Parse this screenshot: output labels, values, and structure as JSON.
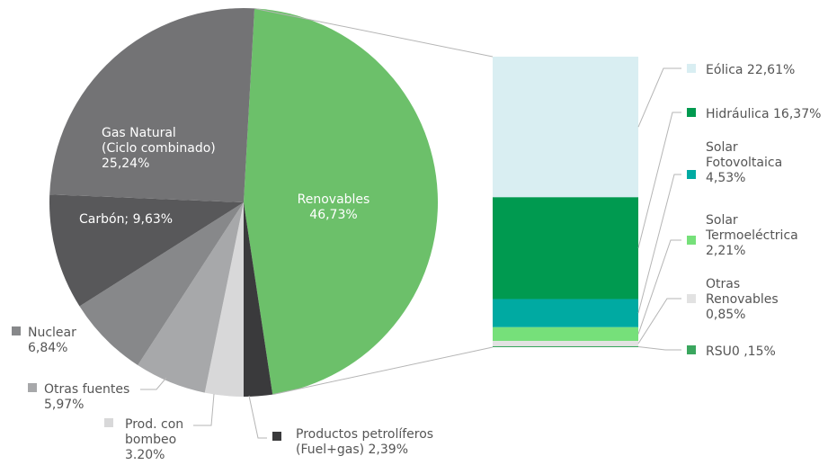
{
  "chart_data": [
    {
      "type": "pie",
      "unit": "%",
      "slices": [
        {
          "label": "Renovables",
          "value": 46.73,
          "value_text": "46,73%",
          "color": "#6cc06a"
        },
        {
          "label": "Productos petrolíferos (Fuel+gas)",
          "value": 2.39,
          "value_text": "2,39%",
          "color": "#3a3a3c"
        },
        {
          "label": "Prod. con bombeo",
          "value": 3.2,
          "value_text": "3.20%",
          "color": "#d8d8d9"
        },
        {
          "label": "Otras fuentes",
          "value": 5.97,
          "value_text": "5,97%",
          "color": "#a7a8aa"
        },
        {
          "label": "Nuclear",
          "value": 6.84,
          "value_text": "6,84%",
          "color": "#87888a"
        },
        {
          "label": "Carbón",
          "value": 9.63,
          "value_text": "9,63%",
          "color": "#58585a"
        },
        {
          "label": "Gas Natural (Ciclo combinado)",
          "value": 25.24,
          "value_text": "25,24%",
          "color": "#737375"
        }
      ]
    },
    {
      "type": "bar",
      "stacked": true,
      "unit": "%",
      "note": "Breakdown of Renovables slice",
      "segments": [
        {
          "label": "Eólica",
          "value": 22.61,
          "value_text": "22,61%",
          "color": "#d9eef2"
        },
        {
          "label": "Hidráulica",
          "value": 16.37,
          "value_text": "16,37%",
          "color": "#009a50"
        },
        {
          "label": "Solar Fotovoltaica",
          "value": 4.53,
          "value_text": "4,53%",
          "color": "#00aaa2"
        },
        {
          "label": "Solar Termoeléctrica",
          "value": 2.21,
          "value_text": "2,21%",
          "color": "#76e07a"
        },
        {
          "label": "Otras Renovables",
          "value": 0.85,
          "value_text": "0,85%",
          "color": "#e2e2e2"
        },
        {
          "label": "RSU0",
          "value": 0.15,
          "value_text": ",15%",
          "color": "#3aa65e"
        }
      ]
    }
  ],
  "labels": {
    "renovables": [
      "Renovables",
      "46,73%"
    ],
    "gas": [
      "Gas Natural",
      "(Ciclo combinado)",
      "25,24%"
    ],
    "carbon": [
      "Carbón; 9,63%"
    ],
    "nuclear": [
      "Nuclear",
      "6,84%"
    ],
    "otras_fuentes": [
      "Otras fuentes",
      "5,97%"
    ],
    "bombeo": [
      "Prod. con",
      "bombeo",
      "3.20%"
    ],
    "petroliferos": [
      "Productos petrolíferos",
      "(Fuel+gas) 2,39%"
    ],
    "eolica": [
      "Eólica 22,61%"
    ],
    "hidraulica": [
      "Hidráulica 16,37%"
    ],
    "fotovoltaica": [
      "Solar",
      "Fotovoltaica",
      "4,53%"
    ],
    "termoelectrica": [
      "Solar",
      "Termoeléctrica",
      "2,21%"
    ],
    "otras_renovables": [
      "Otras",
      "Renovables",
      "0,85%"
    ],
    "rsu": [
      "RSU0 ,15%"
    ]
  }
}
